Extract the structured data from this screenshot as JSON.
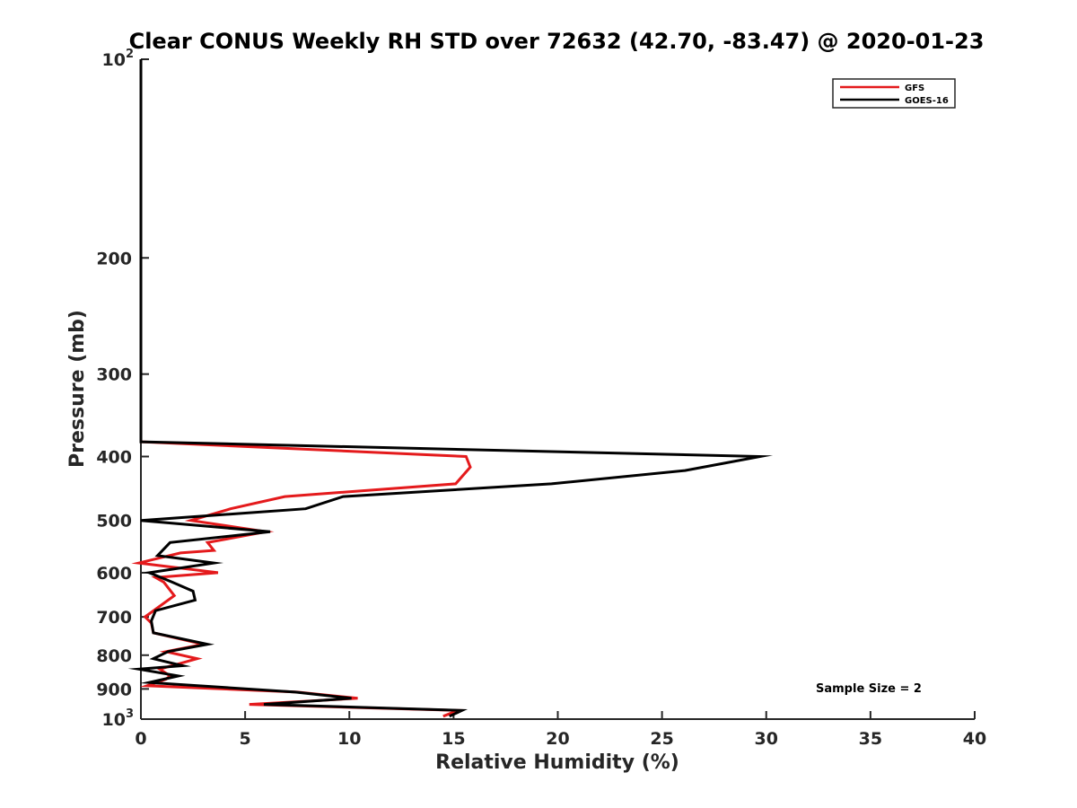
{
  "chart_data": {
    "type": "line",
    "title": "Clear CONUS Weekly RH STD over 72632 (42.70, -83.47) @ 2020-01-23",
    "xlabel": "Relative Humidity (%)",
    "ylabel": "Pressure (mb)",
    "xlim": [
      0,
      40
    ],
    "ylim": [
      100,
      1000
    ],
    "y_scale": "log",
    "y_reversed": true,
    "x_ticks": [
      0,
      5,
      10,
      15,
      20,
      25,
      30,
      35,
      40
    ],
    "y_ticks": [
      {
        "value": 100,
        "base": "10",
        "exp": "2"
      },
      {
        "value": 200,
        "label": "200"
      },
      {
        "value": 300,
        "label": "300"
      },
      {
        "value": 400,
        "label": "400"
      },
      {
        "value": 500,
        "label": "500"
      },
      {
        "value": 600,
        "label": "600"
      },
      {
        "value": 700,
        "label": "700"
      },
      {
        "value": 800,
        "label": "800"
      },
      {
        "value": 900,
        "label": "900"
      },
      {
        "value": 1000,
        "base": "10",
        "exp": "3"
      }
    ],
    "grid": false,
    "legend_position": "top-right",
    "annotation": "Sample Size = 2",
    "series": [
      {
        "name": "GFS",
        "color": "#e41a1c",
        "points": [
          [
            0,
            100
          ],
          [
            0,
            200
          ],
          [
            0,
            300
          ],
          [
            0,
            380
          ],
          [
            15.6,
            400
          ],
          [
            15.8,
            415
          ],
          [
            15.1,
            440
          ],
          [
            6.9,
            460
          ],
          [
            4.3,
            480
          ],
          [
            2.4,
            500
          ],
          [
            6.0,
            520
          ],
          [
            3.2,
            540
          ],
          [
            3.5,
            555
          ],
          [
            1.9,
            560
          ],
          [
            -0.1,
            580
          ],
          [
            3.7,
            600
          ],
          [
            0.7,
            610
          ],
          [
            1.1,
            620
          ],
          [
            1.6,
            650
          ],
          [
            0.2,
            700
          ],
          [
            0.5,
            715
          ],
          [
            0.6,
            740
          ],
          [
            3.0,
            770
          ],
          [
            1.2,
            790
          ],
          [
            2.7,
            810
          ],
          [
            0.9,
            840
          ],
          [
            1.4,
            860
          ],
          [
            1.2,
            870
          ],
          [
            0.3,
            890
          ],
          [
            7.5,
            910
          ],
          [
            10.4,
            930
          ],
          [
            5.2,
            950
          ],
          [
            15.2,
            970
          ],
          [
            14.5,
            990
          ]
        ]
      },
      {
        "name": "GOES-16",
        "color": "#000000",
        "points": [
          [
            0,
            100
          ],
          [
            0,
            200
          ],
          [
            0,
            300
          ],
          [
            0,
            380
          ],
          [
            29.7,
            400
          ],
          [
            26.1,
            420
          ],
          [
            19.7,
            440
          ],
          [
            9.7,
            460
          ],
          [
            7.9,
            480
          ],
          [
            0,
            500
          ],
          [
            6.2,
            520
          ],
          [
            1.4,
            540
          ],
          [
            0.8,
            565
          ],
          [
            3.5,
            580
          ],
          [
            0.4,
            600
          ],
          [
            1.5,
            620
          ],
          [
            2.5,
            640
          ],
          [
            2.6,
            660
          ],
          [
            0.7,
            685
          ],
          [
            0.5,
            710
          ],
          [
            0.6,
            740
          ],
          [
            3.2,
            770
          ],
          [
            1.3,
            790
          ],
          [
            0.6,
            810
          ],
          [
            2.0,
            830
          ],
          [
            -0.1,
            840
          ],
          [
            1.8,
            860
          ],
          [
            0.4,
            880
          ],
          [
            7.4,
            910
          ],
          [
            10.1,
            930
          ],
          [
            5.9,
            950
          ],
          [
            15.4,
            970
          ],
          [
            14.8,
            990
          ]
        ]
      }
    ]
  }
}
